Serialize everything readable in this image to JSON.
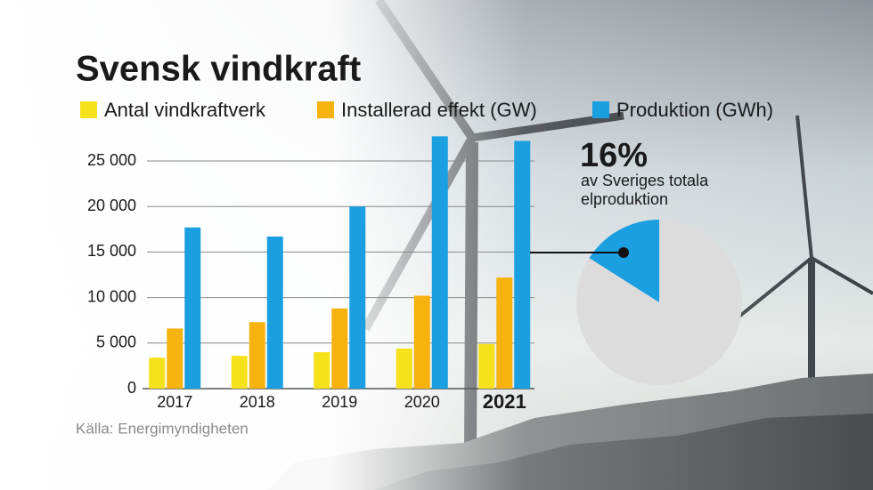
{
  "chart_data": [
    {
      "type": "bar",
      "title": "Svensk vindkraft",
      "source": "Källa: Energimyndigheten",
      "categories": [
        "2017",
        "2018",
        "2019",
        "2020",
        "2021"
      ],
      "highlight_index": 4,
      "series": [
        {
          "name": "Antal vindkraftverk",
          "color": "#f5e21b",
          "values": [
            3400,
            3600,
            4000,
            4400,
            4900
          ]
        },
        {
          "name": "Installerad effekt (GW)",
          "color": "#f6b20f",
          "values": [
            6600,
            7300,
            8800,
            10200,
            12200
          ]
        },
        {
          "name": "Produktion (GWh)",
          "color": "#1a9fe0",
          "values": [
            17700,
            16700,
            20000,
            27700,
            27200
          ]
        }
      ],
      "ylim": [
        0,
        28000
      ],
      "yticks": [
        0,
        {
          "value": 5000,
          "label": "5 000"
        },
        {
          "value": 10000,
          "label": "10 000"
        },
        {
          "value": 15000,
          "label": "15 000"
        },
        {
          "value": 20000,
          "label": "20 000"
        },
        {
          "value": 25000,
          "label": "25 000"
        }
      ],
      "grid": true
    },
    {
      "type": "pie",
      "values": [
        16
      ],
      "value_labels": [
        "16%"
      ],
      "colors": [
        "#1a9fe0"
      ],
      "annotation": [
        "av Sveriges totala",
        "elproduktion"
      ]
    }
  ]
}
